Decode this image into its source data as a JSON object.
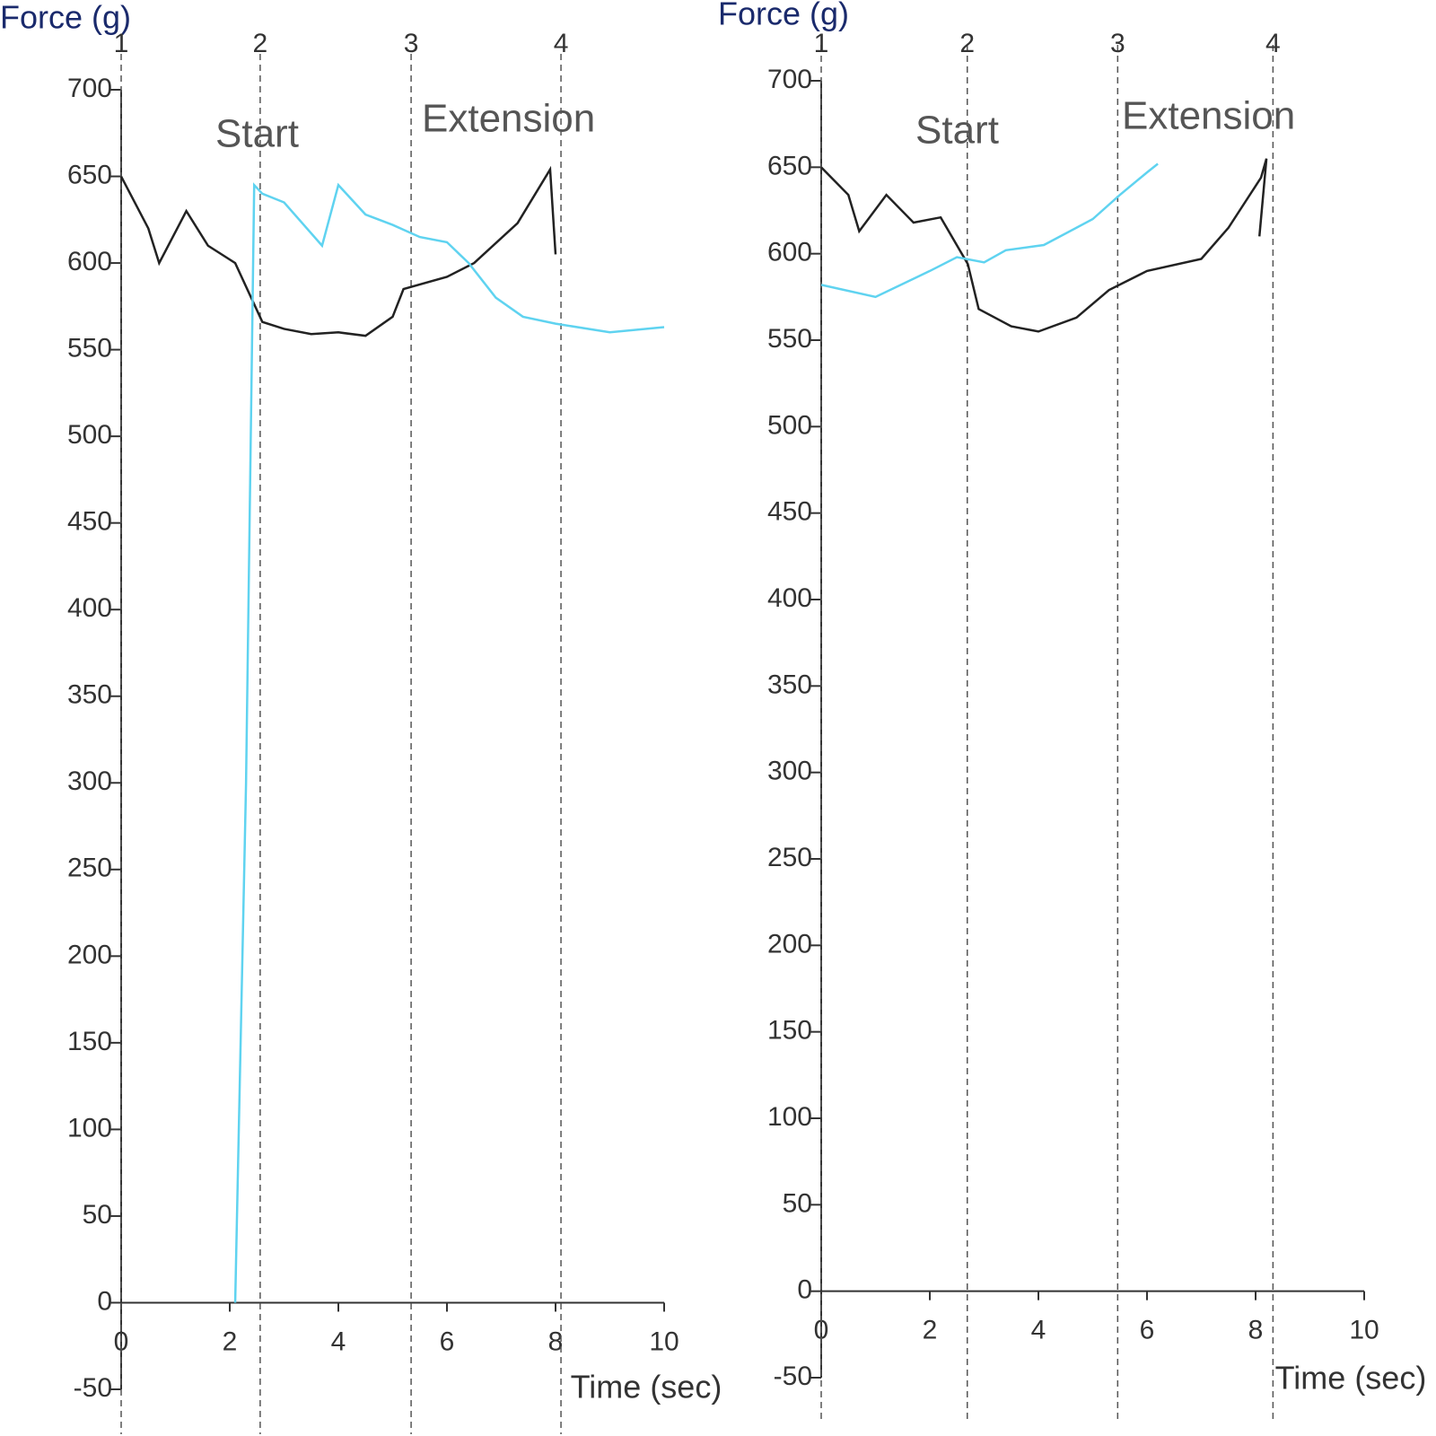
{
  "chart_data": [
    {
      "type": "line",
      "y_label": "Force (g)",
      "x_label": "Time (sec)",
      "xlim": [
        0,
        10
      ],
      "xticks": [
        0,
        2,
        4,
        6,
        8,
        10
      ],
      "ylim": [
        -50,
        700
      ],
      "yticks": [
        -50,
        0,
        50,
        100,
        150,
        200,
        250,
        300,
        350,
        400,
        450,
        500,
        550,
        600,
        650,
        700
      ],
      "markers": {
        "x": [
          0,
          2.56,
          5.34,
          8.1
        ],
        "labels": [
          "1",
          "2",
          "3",
          "4"
        ]
      },
      "annotations": [
        "Start",
        "Extension"
      ],
      "series": [
        {
          "color": "#222222",
          "x": [
            0,
            0.5,
            0.7,
            1.2,
            1.6,
            2.1,
            2.6,
            3,
            3.5,
            4,
            4.5,
            5,
            5.2,
            6,
            6.5,
            7.3,
            7.9,
            8
          ],
          "values": [
            650,
            620,
            600,
            630,
            610,
            600,
            566,
            562,
            559,
            560,
            558,
            569,
            585,
            592,
            600,
            623,
            654,
            605
          ]
        },
        {
          "color": "#5fd3f0",
          "x": [
            2.1,
            2.3,
            2.45,
            2.6,
            3,
            3.7,
            4,
            4.5,
            5,
            5.5,
            6,
            6.4,
            6.9,
            7.4,
            8,
            9,
            10
          ],
          "values": [
            0,
            300,
            645,
            640,
            635,
            610,
            645,
            628,
            622,
            615,
            612,
            600,
            580,
            569,
            565,
            560,
            563
          ]
        }
      ]
    },
    {
      "type": "line",
      "y_label": "Force (g)",
      "x_label": "Time (sec)",
      "xlim": [
        0,
        10
      ],
      "xticks": [
        0,
        2,
        4,
        6,
        8,
        10
      ],
      "ylim": [
        -50,
        700
      ],
      "yticks": [
        -50,
        0,
        50,
        100,
        150,
        200,
        250,
        300,
        350,
        400,
        450,
        500,
        550,
        600,
        650,
        700
      ],
      "markers": {
        "x": [
          0,
          2.69,
          5.46,
          8.32
        ],
        "labels": [
          "1",
          "2",
          "3",
          "4"
        ]
      },
      "annotations": [
        "Start",
        "Extension"
      ],
      "series": [
        {
          "color": "#222222",
          "x": [
            0,
            0.5,
            0.7,
            1.2,
            1.7,
            2.2,
            2.7,
            2.9,
            3.5,
            4,
            4.7,
            5.3,
            6,
            7,
            7.5,
            8.1,
            8.2,
            8.07
          ],
          "values": [
            650,
            634,
            613,
            634,
            618,
            621,
            594,
            568,
            558,
            555,
            563,
            579,
            590,
            597,
            615,
            644,
            655,
            610
          ]
        },
        {
          "color": "#5fd3f0",
          "x": [
            0,
            1,
            2,
            2.5,
            3,
            3.4,
            4.1,
            5,
            5.5,
            6,
            6.2
          ],
          "values": [
            582,
            575,
            590,
            598,
            595,
            602,
            605,
            620,
            634,
            647,
            652
          ]
        }
      ]
    }
  ]
}
